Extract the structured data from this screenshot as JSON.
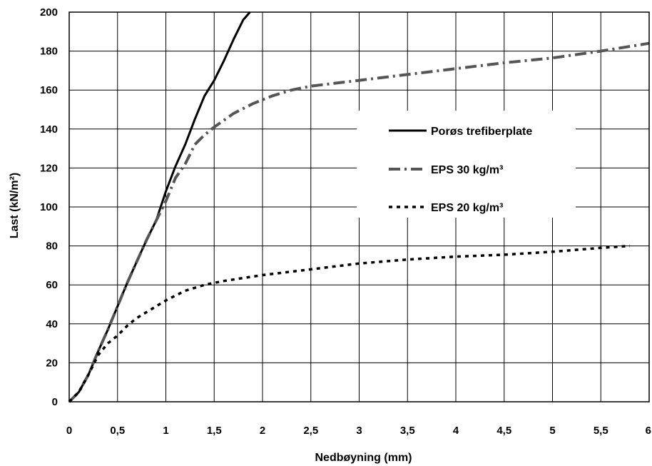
{
  "chart_data": {
    "type": "line",
    "xlabel": "Nedbøyning (mm)",
    "ylabel": "Last (kN/m²)",
    "xlim": [
      0,
      6
    ],
    "ylim": [
      0,
      200
    ],
    "grid": true,
    "legend_position": "right",
    "x_ticks": [
      "0",
      "0,5",
      "1",
      "1,5",
      "2",
      "2,5",
      "3",
      "3,5",
      "4",
      "4,5",
      "5",
      "5,5",
      "6"
    ],
    "y_ticks": [
      "0",
      "20",
      "40",
      "60",
      "80",
      "100",
      "120",
      "140",
      "160",
      "180",
      "200"
    ],
    "series": [
      {
        "name": "Porøs trefiberplate",
        "color": "#000000",
        "style": "solid",
        "points": [
          [
            0,
            0
          ],
          [
            0.1,
            5
          ],
          [
            0.2,
            14
          ],
          [
            0.3,
            26
          ],
          [
            0.4,
            37
          ],
          [
            0.5,
            49
          ],
          [
            0.6,
            61
          ],
          [
            0.7,
            72
          ],
          [
            0.8,
            83
          ],
          [
            0.9,
            93
          ],
          [
            1.0,
            108
          ],
          [
            1.1,
            121
          ],
          [
            1.2,
            132
          ],
          [
            1.3,
            145
          ],
          [
            1.4,
            157
          ],
          [
            1.5,
            165
          ],
          [
            1.6,
            175
          ],
          [
            1.7,
            186
          ],
          [
            1.8,
            196
          ],
          [
            1.87,
            200
          ]
        ]
      },
      {
        "name": "EPS 30 kg/m³",
        "color": "#555555",
        "style": "dashdot",
        "points": [
          [
            0,
            0
          ],
          [
            0.1,
            5
          ],
          [
            0.2,
            14
          ],
          [
            0.3,
            26
          ],
          [
            0.4,
            37
          ],
          [
            0.5,
            49
          ],
          [
            0.6,
            61
          ],
          [
            0.7,
            72
          ],
          [
            0.8,
            83
          ],
          [
            0.9,
            93
          ],
          [
            1.0,
            103
          ],
          [
            1.1,
            115
          ],
          [
            1.2,
            122
          ],
          [
            1.3,
            132
          ],
          [
            1.4,
            137
          ],
          [
            1.5,
            141
          ],
          [
            1.7,
            148
          ],
          [
            1.9,
            153
          ],
          [
            2.1,
            157
          ],
          [
            2.3,
            160
          ],
          [
            2.5,
            162
          ],
          [
            3.0,
            165
          ],
          [
            3.5,
            168
          ],
          [
            4.0,
            171
          ],
          [
            4.5,
            174
          ],
          [
            5.0,
            176.5
          ],
          [
            5.5,
            180
          ],
          [
            6.0,
            184
          ]
        ]
      },
      {
        "name": "EPS 20 kg/m³",
        "color": "#000000",
        "style": "dotted",
        "points": [
          [
            0,
            0
          ],
          [
            0.1,
            5
          ],
          [
            0.2,
            14
          ],
          [
            0.3,
            24
          ],
          [
            0.4,
            30
          ],
          [
            0.5,
            34
          ],
          [
            0.6,
            39
          ],
          [
            0.7,
            43
          ],
          [
            0.8,
            46
          ],
          [
            0.9,
            49
          ],
          [
            1.0,
            52
          ],
          [
            1.2,
            57
          ],
          [
            1.4,
            60
          ],
          [
            1.6,
            62
          ],
          [
            2.0,
            65
          ],
          [
            2.5,
            68
          ],
          [
            3.0,
            71
          ],
          [
            3.5,
            73
          ],
          [
            4.0,
            74.5
          ],
          [
            4.5,
            75.5
          ],
          [
            5.0,
            77
          ],
          [
            5.5,
            79
          ],
          [
            5.8,
            80
          ]
        ]
      }
    ]
  }
}
